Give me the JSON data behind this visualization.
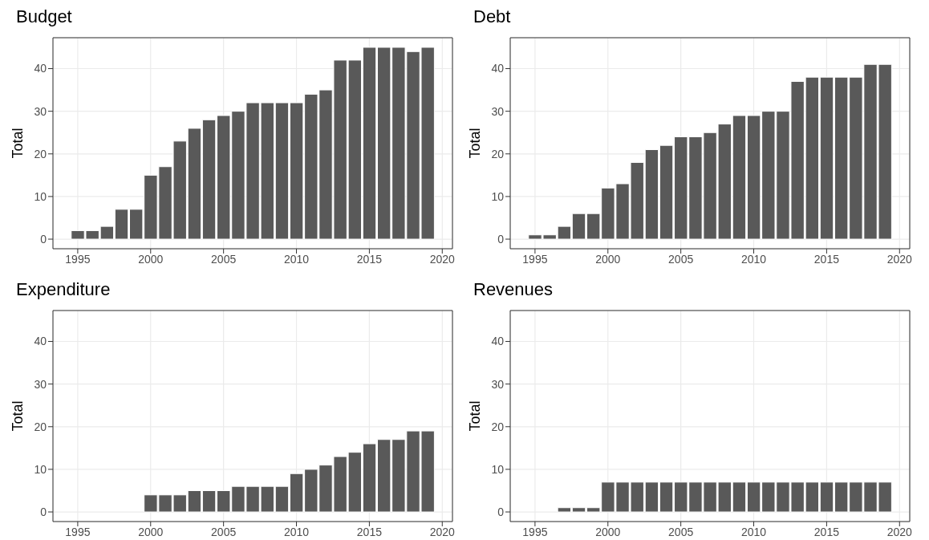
{
  "chart_data": [
    {
      "type": "bar",
      "title": "Budget",
      "ylabel": "Total",
      "color": "#595959",
      "grid": true,
      "xlim": [
        1993.3,
        2020.7
      ],
      "xticks": [
        1995,
        2000,
        2005,
        2010,
        2015,
        2020
      ],
      "ylim": [
        -2.25,
        47.25
      ],
      "yticks": [
        0,
        10,
        20,
        30,
        40
      ],
      "x": [
        1995,
        1996,
        1997,
        1998,
        1999,
        2000,
        2001,
        2002,
        2003,
        2004,
        2005,
        2006,
        2007,
        2008,
        2009,
        2010,
        2011,
        2012,
        2013,
        2014,
        2015,
        2016,
        2017,
        2018,
        2019
      ],
      "values": [
        2,
        2,
        3,
        7,
        7,
        15,
        17,
        23,
        26,
        28,
        29,
        30,
        32,
        32,
        32,
        32,
        34,
        35,
        42,
        42,
        45,
        45,
        45,
        44,
        45
      ]
    },
    {
      "type": "bar",
      "title": "Debt",
      "ylabel": "Total",
      "color": "#595959",
      "grid": true,
      "xlim": [
        1993.3,
        2020.7
      ],
      "xticks": [
        1995,
        2000,
        2005,
        2010,
        2015,
        2020
      ],
      "ylim": [
        -2.25,
        47.25
      ],
      "yticks": [
        0,
        10,
        20,
        30,
        40
      ],
      "x": [
        1995,
        1996,
        1997,
        1998,
        1999,
        2000,
        2001,
        2002,
        2003,
        2004,
        2005,
        2006,
        2007,
        2008,
        2009,
        2010,
        2011,
        2012,
        2013,
        2014,
        2015,
        2016,
        2017,
        2018,
        2019
      ],
      "values": [
        1,
        1,
        3,
        6,
        6,
        12,
        13,
        18,
        21,
        22,
        24,
        24,
        25,
        27,
        29,
        29,
        30,
        30,
        37,
        38,
        38,
        38,
        38,
        41,
        41
      ]
    },
    {
      "type": "bar",
      "title": "Expenditure",
      "ylabel": "Total",
      "color": "#595959",
      "grid": true,
      "xlim": [
        1993.3,
        2020.7
      ],
      "xticks": [
        1995,
        2000,
        2005,
        2010,
        2015,
        2020
      ],
      "ylim": [
        -2.25,
        47.25
      ],
      "yticks": [
        0,
        10,
        20,
        30,
        40
      ],
      "x": [
        2000,
        2001,
        2002,
        2003,
        2004,
        2005,
        2006,
        2007,
        2008,
        2009,
        2010,
        2011,
        2012,
        2013,
        2014,
        2015,
        2016,
        2017,
        2018,
        2019
      ],
      "values": [
        4,
        4,
        4,
        5,
        5,
        5,
        6,
        6,
        6,
        6,
        9,
        10,
        11,
        13,
        14,
        16,
        17,
        17,
        19,
        19
      ]
    },
    {
      "type": "bar",
      "title": "Revenues",
      "ylabel": "Total",
      "color": "#595959",
      "grid": true,
      "xlim": [
        1993.3,
        2020.7
      ],
      "xticks": [
        1995,
        2000,
        2005,
        2010,
        2015,
        2020
      ],
      "ylim": [
        -2.25,
        47.25
      ],
      "yticks": [
        0,
        10,
        20,
        30,
        40
      ],
      "x": [
        1997,
        1998,
        1999,
        2000,
        2001,
        2002,
        2003,
        2004,
        2005,
        2006,
        2007,
        2008,
        2009,
        2010,
        2011,
        2012,
        2013,
        2014,
        2015,
        2016,
        2017,
        2018,
        2019
      ],
      "values": [
        1,
        1,
        1,
        7,
        7,
        7,
        7,
        7,
        7,
        7,
        7,
        7,
        7,
        7,
        7,
        7,
        7,
        7,
        7,
        7,
        7,
        7,
        7
      ]
    }
  ]
}
